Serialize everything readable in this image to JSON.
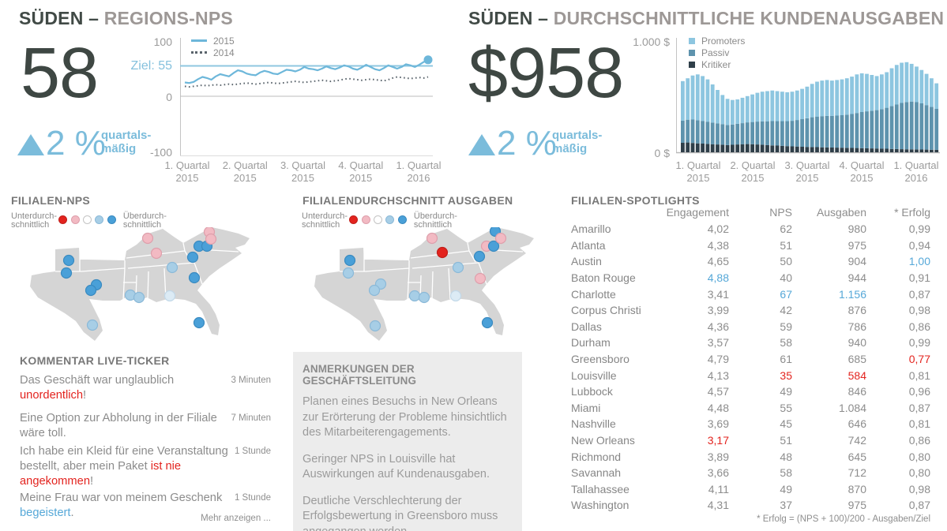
{
  "palette": {
    "accent_blue": "#7bbcdb",
    "kpi_text": "#3e4743",
    "title_primary": "#414a46",
    "title_secondary": "#9d9896",
    "red": "#e3241f",
    "table_blue": "#56a8d8",
    "map_fill": "#d5d5d5"
  },
  "header": {
    "left": {
      "primary": "SÜDEN –",
      "secondary": "REGIONS-NPS"
    },
    "right": {
      "primary": "SÜDEN –",
      "secondary": "DURCHSCHNITTLICHE KUNDENAUSGABEN"
    }
  },
  "kpis": {
    "left": {
      "value": "58",
      "delta": "2 %",
      "delta_line1": "quartals-",
      "delta_line2": "mäßig"
    },
    "right": {
      "value": "$958",
      "delta": "2 %",
      "delta_line1": "quartals-",
      "delta_line2": "mäßig"
    }
  },
  "map_dot_colors": {
    "red": {
      "fill": "#e3231e",
      "stroke": "#c0201c"
    },
    "pink": {
      "fill": "#f2bac3",
      "stroke": "#de9fab"
    },
    "white": {
      "fill": "#ffffff",
      "stroke": "#c4c4c4"
    },
    "lightblue": {
      "fill": "#a7cee6",
      "stroke": "#8bb9d8"
    },
    "blue": {
      "fill": "#4aa0d8",
      "stroke": "#3a8ac0"
    },
    "palest": {
      "fill": "#dcebf5",
      "stroke": "#c2d8e8"
    }
  },
  "chart_data": [
    {
      "id": "regions_nps_line",
      "type": "line",
      "title": "SÜDEN – REGIONS-NPS",
      "ylim": [
        -100,
        100
      ],
      "ytick_labels": [
        "100",
        "0",
        "-100"
      ],
      "target": {
        "label": "Ziel: 55",
        "value": 55,
        "color": "#8fc7e0"
      },
      "x_categories": [
        "1. Quartal 2015",
        "2. Quartal 2015",
        "3. Quartal 2015",
        "4. Quartal 2015",
        "1. Quartal 2016"
      ],
      "series": [
        {
          "name": "2015",
          "style": "solid",
          "color": "#6db7da",
          "values": [
            25,
            24,
            26,
            31,
            35,
            33,
            30,
            36,
            40,
            38,
            36,
            42,
            47,
            45,
            41,
            39,
            38,
            43,
            46,
            44,
            41,
            40,
            44,
            48,
            47,
            45,
            48,
            53,
            50,
            49,
            47,
            50,
            54,
            51,
            49,
            52,
            56,
            54,
            50,
            48,
            52,
            57,
            53,
            49,
            47,
            51,
            56,
            53,
            50,
            53,
            58,
            56,
            53,
            57,
            62,
            66
          ]
        },
        {
          "name": "2014",
          "style": "dotted",
          "color": "#5a646c",
          "values": [
            18,
            17,
            18,
            19,
            20,
            19,
            20,
            21,
            20,
            21,
            22,
            21,
            22,
            23,
            24,
            23,
            22,
            23,
            24,
            25,
            24,
            23,
            24,
            25,
            26,
            27,
            26,
            25,
            26,
            27,
            28,
            29,
            28,
            27,
            28,
            29,
            31,
            32,
            31,
            30,
            29,
            30,
            31,
            30,
            29,
            28,
            30,
            33,
            35,
            34,
            33,
            32,
            33,
            34,
            33,
            35
          ]
        }
      ]
    },
    {
      "id": "spend_stacked_bars",
      "type": "bar",
      "stacked": true,
      "title": "SÜDEN – DURCHSCHNITTLICHE KUNDENAUSGABEN",
      "ylim": [
        0,
        1000
      ],
      "ytick_labels": [
        "1.000 $",
        "0 $"
      ],
      "x_categories": [
        "1. Quartal 2015",
        "2. Quartal 2015",
        "3. Quartal 2015",
        "4. Quartal 2015",
        "1. Quartal 2016"
      ],
      "series": [
        {
          "name": "Kritiker",
          "color": "#2f3f49",
          "values": [
            85,
            88,
            84,
            80,
            78,
            75,
            72,
            70,
            68,
            65,
            68,
            70,
            72,
            74,
            72,
            70,
            68,
            65,
            62,
            60,
            58,
            55,
            53,
            52,
            50,
            48,
            47,
            46,
            45,
            44,
            43,
            42,
            41,
            40,
            39,
            38,
            37,
            36,
            35,
            34,
            33,
            32,
            30,
            29,
            28,
            27,
            26,
            25,
            25,
            24,
            23,
            22
          ]
        },
        {
          "name": "Passiv",
          "color": "#5e93ad",
          "values": [
            200,
            205,
            210,
            208,
            204,
            200,
            195,
            190,
            185,
            180,
            182,
            186,
            190,
            195,
            200,
            206,
            210,
            214,
            218,
            220,
            222,
            225,
            230,
            238,
            248,
            258,
            268,
            275,
            280,
            283,
            285,
            288,
            292,
            298,
            305,
            315,
            325,
            332,
            338,
            345,
            355,
            368,
            385,
            400,
            415,
            425,
            430,
            425,
            415,
            400,
            385,
            368
          ]
        },
        {
          "name": "Promoters",
          "color": "#8dc6e0",
          "values": [
            355,
            372,
            396,
            412,
            403,
            380,
            343,
            300,
            262,
            235,
            220,
            219,
            228,
            236,
            248,
            259,
            267,
            271,
            275,
            270,
            265,
            260,
            262,
            265,
            272,
            284,
            300,
            314,
            320,
            323,
            317,
            320,
            322,
            327,
            336,
            347,
            348,
            337,
            322,
            306,
            312,
            320,
            340,
            356,
            362,
            358,
            339,
            320,
            300,
            281,
            257,
            230
          ]
        }
      ]
    },
    {
      "id": "filialen_nps_map",
      "type": "map-dots",
      "title": "FILIALEN-NPS",
      "legend": {
        "low": [
          "Unterdurch-",
          "schnittlich"
        ],
        "high": [
          "Überdurch-",
          "schnittlich"
        ],
        "scale": [
          "red",
          "pink",
          "white",
          "lightblue",
          "blue"
        ]
      },
      "dots": [
        {
          "x": 77,
          "y": 42,
          "c": "blue"
        },
        {
          "x": 74,
          "y": 58,
          "c": "blue"
        },
        {
          "x": 112,
          "y": 73,
          "c": "blue"
        },
        {
          "x": 105,
          "y": 80,
          "c": "blue"
        },
        {
          "x": 107,
          "y": 124,
          "c": "lightblue"
        },
        {
          "x": 155,
          "y": 86,
          "c": "lightblue"
        },
        {
          "x": 166,
          "y": 89,
          "c": "lightblue"
        },
        {
          "x": 205,
          "y": 87,
          "c": "palest"
        },
        {
          "x": 177,
          "y": 14,
          "c": "pink"
        },
        {
          "x": 188,
          "y": 33,
          "c": "pink"
        },
        {
          "x": 208,
          "y": 51,
          "c": "lightblue"
        },
        {
          "x": 234,
          "y": 38,
          "c": "blue"
        },
        {
          "x": 242,
          "y": 24,
          "c": "blue"
        },
        {
          "x": 252,
          "y": 24,
          "c": "blue"
        },
        {
          "x": 255,
          "y": 6,
          "c": "pink"
        },
        {
          "x": 257,
          "y": 15,
          "c": "pink"
        },
        {
          "x": 236,
          "y": 64,
          "c": "blue"
        },
        {
          "x": 242,
          "y": 121,
          "c": "blue"
        }
      ]
    },
    {
      "id": "filialen_spend_map",
      "type": "map-dots",
      "title": "FILIALENDURCHSCHNITT AUSGABEN",
      "legend": {
        "low": [
          "Unterdurch-",
          "schnittlich"
        ],
        "high": [
          "Überdurch-",
          "schnittlich"
        ],
        "scale": [
          "red",
          "pink",
          "white",
          "lightblue",
          "blue"
        ]
      },
      "dots": [
        {
          "x": 73,
          "y": 42,
          "c": "blue"
        },
        {
          "x": 71,
          "y": 58,
          "c": "lightblue"
        },
        {
          "x": 112,
          "y": 72,
          "c": "lightblue"
        },
        {
          "x": 104,
          "y": 80,
          "c": "lightblue"
        },
        {
          "x": 105,
          "y": 125,
          "c": "lightblue"
        },
        {
          "x": 155,
          "y": 87,
          "c": "lightblue"
        },
        {
          "x": 167,
          "y": 89,
          "c": "lightblue"
        },
        {
          "x": 207,
          "y": 87,
          "c": "palest"
        },
        {
          "x": 177,
          "y": 14,
          "c": "pink"
        },
        {
          "x": 190,
          "y": 32,
          "c": "red"
        },
        {
          "x": 210,
          "y": 51,
          "c": "lightblue"
        },
        {
          "x": 237,
          "y": 37,
          "c": "blue"
        },
        {
          "x": 246,
          "y": 24,
          "c": "pink"
        },
        {
          "x": 255,
          "y": 24,
          "c": "blue"
        },
        {
          "x": 257,
          "y": 5,
          "c": "blue"
        },
        {
          "x": 264,
          "y": 14,
          "c": "pink"
        },
        {
          "x": 238,
          "y": 65,
          "c": "pink"
        },
        {
          "x": 247,
          "y": 121,
          "c": "blue"
        }
      ]
    },
    {
      "id": "filialen_spotlights",
      "type": "table",
      "title": "FILIALEN-SPOTLIGHTS",
      "columns": [
        "Engagement",
        "NPS",
        "Ausgaben",
        "* Erfolg"
      ],
      "footnote": "* Erfolg = (NPS + 100)/200 - Ausgaben/Ziel",
      "rows": [
        {
          "city": "Amarillo",
          "engagement": "4,02",
          "nps": "62",
          "ausgaben": "980",
          "erfolg": "0,99"
        },
        {
          "city": "Atlanta",
          "engagement": "4,38",
          "nps": "51",
          "ausgaben": "975",
          "erfolg": "0,94"
        },
        {
          "city": "Austin",
          "engagement": "4,65",
          "nps": "50",
          "ausgaben": "904",
          "erfolg": "1,00",
          "marks": {
            "erfolg": "blue"
          }
        },
        {
          "city": "Baton Rouge",
          "engagement": "4,88",
          "nps": "40",
          "ausgaben": "944",
          "erfolg": "0,91",
          "marks": {
            "engagement": "blue"
          }
        },
        {
          "city": "Charlotte",
          "engagement": "3,41",
          "nps": "67",
          "ausgaben": "1.156",
          "erfolg": "0,87",
          "marks": {
            "nps": "blue",
            "ausgaben": "blue"
          }
        },
        {
          "city": "Corpus Christi",
          "engagement": "3,99",
          "nps": "42",
          "ausgaben": "876",
          "erfolg": "0,98"
        },
        {
          "city": "Dallas",
          "engagement": "4,36",
          "nps": "59",
          "ausgaben": "786",
          "erfolg": "0,86"
        },
        {
          "city": "Durham",
          "engagement": "3,57",
          "nps": "58",
          "ausgaben": "940",
          "erfolg": "0,99"
        },
        {
          "city": "Greensboro",
          "engagement": "4,79",
          "nps": "61",
          "ausgaben": "685",
          "erfolg": "0,77",
          "marks": {
            "erfolg": "red"
          }
        },
        {
          "city": "Louisville",
          "engagement": "4,13",
          "nps": "35",
          "ausgaben": "584",
          "erfolg": "0,81",
          "marks": {
            "nps": "red",
            "ausgaben": "red"
          }
        },
        {
          "city": "Lubbock",
          "engagement": "4,57",
          "nps": "49",
          "ausgaben": "846",
          "erfolg": "0,96"
        },
        {
          "city": "Miami",
          "engagement": "4,48",
          "nps": "55",
          "ausgaben": "1.084",
          "erfolg": "0,87"
        },
        {
          "city": "Nashville",
          "engagement": "3,69",
          "nps": "45",
          "ausgaben": "646",
          "erfolg": "0,81"
        },
        {
          "city": "New Orleans",
          "engagement": "3,17",
          "nps": "51",
          "ausgaben": "742",
          "erfolg": "0,86",
          "marks": {
            "engagement": "red"
          }
        },
        {
          "city": "Richmond",
          "engagement": "3,89",
          "nps": "48",
          "ausgaben": "645",
          "erfolg": "0,80"
        },
        {
          "city": "Savannah",
          "engagement": "3,66",
          "nps": "58",
          "ausgaben": "712",
          "erfolg": "0,80"
        },
        {
          "city": "Tallahassee",
          "engagement": "4,11",
          "nps": "49",
          "ausgaben": "870",
          "erfolg": "0,98"
        },
        {
          "city": "Washington",
          "engagement": "4,31",
          "nps": "37",
          "ausgaben": "975",
          "erfolg": "0,87"
        }
      ]
    }
  ],
  "comments": {
    "title": "KOMMENTAR LIVE-TICKER",
    "more": "Mehr anzeigen ...",
    "items": [
      {
        "segments": [
          {
            "t": "Das Geschäft war unglaublich "
          },
          {
            "t": "unordentlich",
            "c": "red"
          },
          {
            "t": "!"
          }
        ],
        "time": "3 Minuten"
      },
      {
        "segments": [
          {
            "t": "Eine Option zur Abholung in der Filiale wäre toll."
          }
        ],
        "time": "7 Minuten"
      },
      {
        "segments": [
          {
            "t": "Ich habe ein Kleid für eine Veranstaltung bestellt, aber mein Paket "
          },
          {
            "t": "ist nie angekommen",
            "c": "red"
          },
          {
            "t": "!"
          }
        ],
        "time": "1 Stunde"
      },
      {
        "segments": [
          {
            "t": "Meine Frau war von meinem Geschenk "
          },
          {
            "t": "begeistert",
            "c": "blue"
          },
          {
            "t": "."
          }
        ],
        "time": "1 Stunde"
      }
    ]
  },
  "notes": {
    "title": "ANMERKUNGEN DER GESCHÄFTSLEITUNG",
    "paragraphs": [
      "Planen eines Besuchs in New Orleans zur Erörterung der Probleme hinsichtlich des Mitarbeiterengagements.",
      "Geringer NPS in Louisville hat Auswirkungen auf Kundenausgaben.",
      "Deutliche Verschlechterung der Erfolgsbewertung in Greensboro muss angegangen werden."
    ]
  }
}
